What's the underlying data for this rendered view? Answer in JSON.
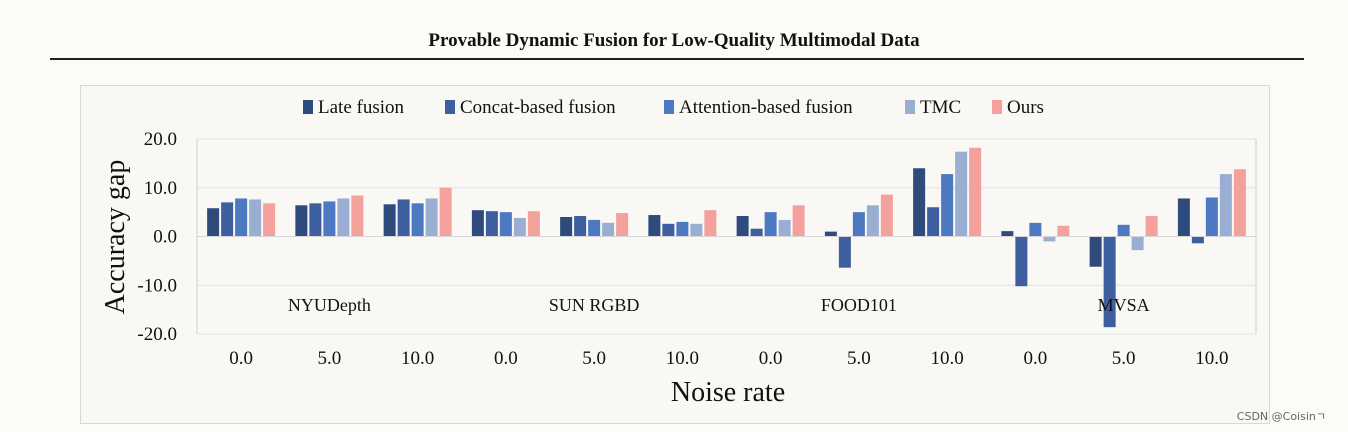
{
  "header": {
    "title": "Provable Dynamic Fusion for Low-Quality Multimodal Data"
  },
  "watermark": "CSDN @Coisinㄱ",
  "chart_data": {
    "type": "bar",
    "title": "",
    "ylabel": "Accuracy gap",
    "xlabel": "Noise rate",
    "ylim": [
      -20,
      20
    ],
    "yticks": [
      20,
      10,
      0,
      -10,
      -20
    ],
    "ytick_labels": [
      "20.0",
      "10.0",
      "0.0",
      "-10.0",
      "-20.0"
    ],
    "legend_position": "top-center",
    "categories": [
      "0.0",
      "5.0",
      "10.0",
      "0.0",
      "5.0",
      "10.0",
      "0.0",
      "5.0",
      "10.0",
      "0.0",
      "5.0",
      "10.0"
    ],
    "groups": [
      {
        "label": "NYUDepth",
        "span": [
          0,
          2
        ]
      },
      {
        "label": "SUN RGBD",
        "span": [
          3,
          5
        ]
      },
      {
        "label": "FOOD101",
        "span": [
          6,
          8
        ]
      },
      {
        "label": "MVSA",
        "span": [
          9,
          11
        ]
      }
    ],
    "series": [
      {
        "name": "Late fusion",
        "color": "#2f4a7d",
        "values": [
          5.8,
          6.4,
          6.6,
          5.4,
          4.0,
          4.4,
          4.2,
          1.0,
          14.0,
          1.1,
          -6.2,
          7.8
        ]
      },
      {
        "name": "Concat-based fusion",
        "color": "#3d5f9f",
        "values": [
          7.0,
          6.8,
          7.6,
          5.2,
          4.2,
          2.6,
          1.6,
          -6.4,
          6.0,
          -10.2,
          -18.6,
          -1.4
        ]
      },
      {
        "name": "Attention-based fusion",
        "color": "#4d79c2",
        "values": [
          7.8,
          7.2,
          6.8,
          5.0,
          3.4,
          3.0,
          5.0,
          5.0,
          12.8,
          2.8,
          2.4,
          8.0
        ]
      },
      {
        "name": "TMC",
        "color": "#9aaed4",
        "values": [
          7.6,
          7.8,
          7.8,
          3.8,
          2.8,
          2.6,
          3.4,
          6.4,
          17.4,
          -1.0,
          -2.8,
          12.8
        ]
      },
      {
        "name": "Ours",
        "color": "#f4a09c",
        "values": [
          6.8,
          8.4,
          10.0,
          5.2,
          4.8,
          5.4,
          6.4,
          8.6,
          18.2,
          2.2,
          4.2,
          13.8
        ]
      }
    ]
  }
}
